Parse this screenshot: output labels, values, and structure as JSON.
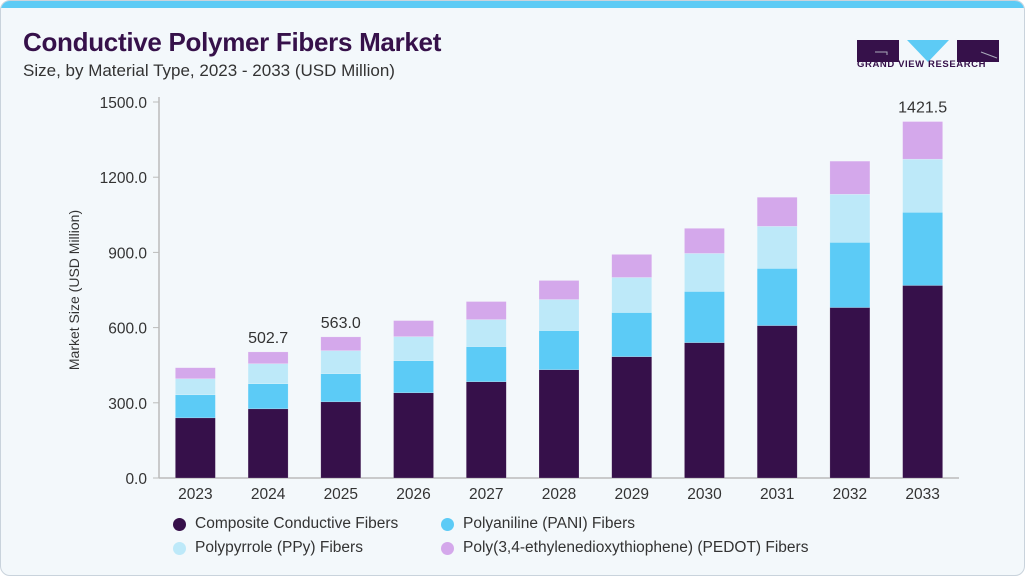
{
  "header": {
    "title": "Conductive Polymer Fibers Market",
    "subtitle": "Size, by Material Type, 2023 - 2033 (USD Million)"
  },
  "logo": {
    "text": "GRAND VIEW RESEARCH"
  },
  "chart_data": {
    "type": "bar",
    "stacked": true,
    "categories": [
      "2023",
      "2024",
      "2025",
      "2026",
      "2027",
      "2028",
      "2029",
      "2030",
      "2031",
      "2032",
      "2033"
    ],
    "ylabel": "Market Size (USD Million)",
    "xlabel": "",
    "ylim": [
      0,
      1500
    ],
    "yticks": [
      "0.0",
      "300.0",
      "600.0",
      "900.0",
      "1200.0",
      "1500.0"
    ],
    "grid": false,
    "legend_position": "bottom",
    "series": [
      {
        "name": "Composite Conductive Fibers",
        "color": "#36104a",
        "values": [
          240,
          276,
          304,
          340,
          384,
          432,
          484,
          540,
          608,
          680,
          768
        ]
      },
      {
        "name": "Polyaniline (PANI) Fibers",
        "color": "#5ccbf6",
        "values": [
          92,
          100,
          112,
          128,
          140,
          156,
          176,
          204,
          228,
          260,
          292
        ]
      },
      {
        "name": "Polypyrrole (PPy) Fibers",
        "color": "#bde9f9",
        "values": [
          64,
          80,
          92,
          96,
          108,
          124,
          140,
          152,
          168,
          192,
          212
        ]
      },
      {
        "name": "Poly(3,4-ethylenedioxythiophene) (PEDOT) Fibers",
        "color": "#d4a8eb",
        "values": [
          44,
          47,
          55,
          64,
          72,
          76,
          92,
          100,
          116,
          132,
          150
        ]
      }
    ],
    "data_labels": [
      {
        "category": "2024",
        "text": "502.7"
      },
      {
        "category": "2025",
        "text": "563.0"
      },
      {
        "category": "2033",
        "text": "1421.5"
      }
    ]
  }
}
